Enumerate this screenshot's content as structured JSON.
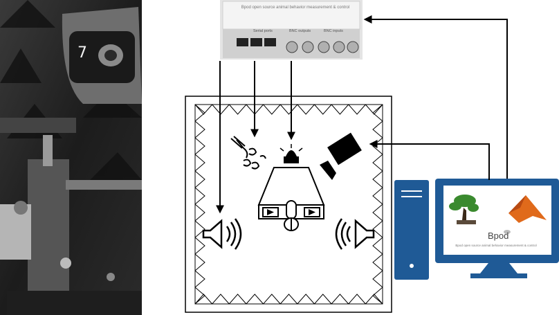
{
  "photo": {
    "label": "7"
  },
  "control_box": {
    "title": "Bpod open source animal behavior measurement & control",
    "port_labels": [
      "Serial ports",
      "BNC outputs",
      "BNC inputs"
    ]
  },
  "computer": {
    "logo_text": "Bpod",
    "caption": "Bpod open source animal behavior measurement & control"
  },
  "colors": {
    "computer": "#1f5a96",
    "tree": "#3a8a2e",
    "matlab": "#e06a1b",
    "arrow": "#000000"
  },
  "icons": [
    "speaker-icon",
    "air-puff-icon",
    "light-icon",
    "camera-icon",
    "lever-icon",
    "tree-icon",
    "matlab-icon"
  ]
}
